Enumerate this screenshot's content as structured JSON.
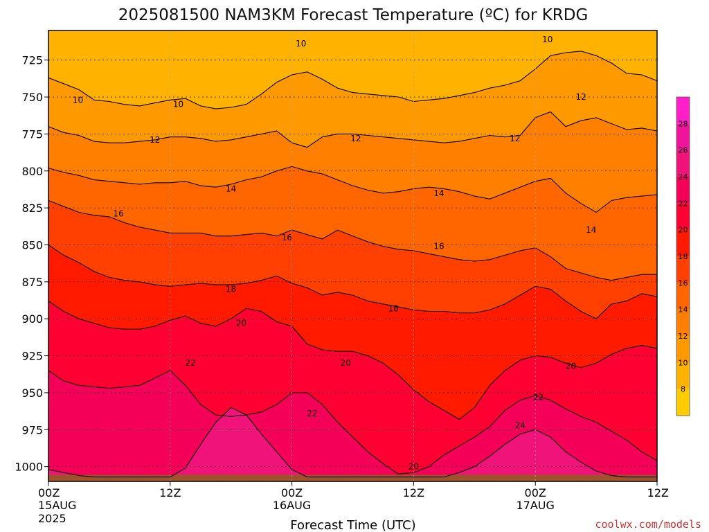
{
  "title": "2025081500 NAM3KM Forecast Temperature (ºC) for KRDG",
  "credit": "coolwx.com/models",
  "chart_data": {
    "type": "heatmap",
    "subtype": "time-height filled contour",
    "title": "2025081500 NAM3KM Forecast Temperature (ºC) for KRDG",
    "xlabel": "Forecast Time (UTC)",
    "ylabel": "",
    "x_ticks": [
      {
        "hour": 0,
        "label": "00Z",
        "date": "15AUG",
        "year": "2025"
      },
      {
        "hour": 12,
        "label": "12Z",
        "date": "",
        "year": ""
      },
      {
        "hour": 24,
        "label": "00Z",
        "date": "16AUG",
        "year": ""
      },
      {
        "hour": 36,
        "label": "12Z",
        "date": "",
        "year": ""
      },
      {
        "hour": 48,
        "label": "00Z",
        "date": "17AUG",
        "year": ""
      },
      {
        "hour": 60,
        "label": "12Z",
        "date": "",
        "year": ""
      }
    ],
    "xlim": [
      0,
      60
    ],
    "y_ticks": [
      725,
      750,
      775,
      800,
      825,
      850,
      875,
      900,
      925,
      950,
      975,
      1000
    ],
    "ylim": [
      1010,
      705
    ],
    "grid": true,
    "colorbar": {
      "ticks": [
        8,
        10,
        12,
        14,
        16,
        18,
        20,
        22,
        24,
        26,
        28
      ],
      "levels": [
        6,
        8,
        10,
        12,
        14,
        16,
        18,
        20,
        22,
        24,
        26,
        28,
        30
      ],
      "colors": [
        "#ffcc00",
        "#ffb300",
        "#ff9900",
        "#ff8000",
        "#ff6600",
        "#ff4000",
        "#ff1a00",
        "#ff0033",
        "#f50059",
        "#f0147a",
        "#f0149b",
        "#ff1ec8"
      ]
    },
    "ground_color": "#a0522d",
    "hours": [
      0,
      1.5,
      3,
      4.5,
      6,
      7.5,
      9,
      10.5,
      12,
      13.5,
      15,
      16.5,
      18,
      19.5,
      21,
      22.5,
      24,
      25.5,
      27,
      28.5,
      30,
      31.5,
      33,
      34.5,
      36,
      37.5,
      39,
      40.5,
      42,
      43.5,
      45,
      46.5,
      48,
      49.5,
      51,
      52.5,
      54,
      55.5,
      57,
      58.5,
      60
    ],
    "series": [
      {
        "name": "",
        "level": 10,
        "values": [
          737,
          741,
          745,
          752,
          753,
          755,
          756,
          754,
          752,
          751,
          756,
          758,
          757,
          755,
          748,
          740,
          735,
          733,
          738,
          744,
          747,
          748,
          749,
          750,
          753,
          752,
          751,
          749,
          747,
          744,
          742,
          739,
          731,
          722,
          720,
          719,
          722,
          727,
          734,
          735,
          739
        ]
      },
      {
        "name": "",
        "level": 12,
        "values": [
          770,
          774,
          776,
          780,
          781,
          781,
          780,
          779,
          777,
          777,
          778,
          780,
          779,
          777,
          775,
          773,
          781,
          784,
          777,
          775,
          775,
          776,
          777,
          778,
          779,
          780,
          781,
          780,
          778,
          776,
          777,
          776,
          764,
          760,
          770,
          766,
          764,
          768,
          772,
          771,
          773
        ]
      },
      {
        "name": "",
        "level": 14,
        "values": [
          798,
          801,
          803,
          806,
          807,
          808,
          809,
          808,
          808,
          807,
          810,
          811,
          809,
          806,
          804,
          800,
          797,
          800,
          802,
          806,
          810,
          813,
          815,
          814,
          812,
          811,
          812,
          814,
          817,
          819,
          815,
          811,
          807,
          805,
          815,
          822,
          828,
          820,
          818,
          817,
          816
        ]
      },
      {
        "name": "",
        "level": 16,
        "values": [
          820,
          824,
          828,
          830,
          831,
          835,
          838,
          840,
          842,
          842,
          842,
          844,
          844,
          843,
          842,
          844,
          840,
          843,
          846,
          840,
          844,
          848,
          851,
          853,
          854,
          856,
          858,
          860,
          861,
          860,
          857,
          854,
          852,
          858,
          866,
          869,
          872,
          874,
          872,
          870,
          870
        ]
      },
      {
        "name": "",
        "level": 18,
        "values": [
          850,
          857,
          862,
          868,
          872,
          874,
          875,
          877,
          878,
          877,
          876,
          877,
          877,
          876,
          874,
          871,
          876,
          879,
          884,
          882,
          884,
          888,
          890,
          892,
          894,
          895,
          895,
          896,
          896,
          894,
          890,
          884,
          878,
          880,
          888,
          895,
          900,
          890,
          888,
          883,
          885
        ]
      },
      {
        "name": "",
        "level": 20,
        "values": [
          888,
          895,
          900,
          903,
          906,
          907,
          907,
          905,
          901,
          898,
          903,
          905,
          900,
          893,
          895,
          902,
          905,
          917,
          921,
          922,
          922,
          925,
          930,
          938,
          948,
          956,
          962,
          968,
          960,
          945,
          935,
          928,
          925,
          926,
          930,
          933,
          930,
          924,
          920,
          918,
          920
        ]
      },
      {
        "name": "",
        "level": 22,
        "values": [
          935,
          942,
          945,
          946,
          947,
          946,
          945,
          940,
          935,
          945,
          958,
          965,
          966,
          965,
          963,
          958,
          950,
          950,
          958,
          970,
          980,
          990,
          998,
          1005,
          1004,
          1000,
          992,
          986,
          980,
          973,
          962,
          955,
          952,
          955,
          961,
          966,
          970,
          976,
          982,
          990,
          996
        ]
      },
      {
        "name": "",
        "level": 24,
        "values": [
          1002,
          1004,
          1006,
          1007,
          1007,
          1007,
          1007,
          1007,
          1007,
          1001,
          985,
          970,
          960,
          965,
          978,
          990,
          1002,
          1007,
          1007,
          1007,
          1007,
          1007,
          1007,
          1007,
          1007,
          1007,
          1007,
          1004,
          1000,
          993,
          985,
          978,
          975,
          980,
          990,
          997,
          1003,
          1006,
          1007,
          1007,
          1007
        ]
      }
    ],
    "contour_labels": [
      {
        "text": "10",
        "hour": 2.9,
        "p": 752
      },
      {
        "text": "10",
        "hour": 12.8,
        "p": 755
      },
      {
        "text": "10",
        "hour": 24.9,
        "p": 714
      },
      {
        "text": "10",
        "hour": 49.2,
        "p": 711
      },
      {
        "text": "12",
        "hour": 10.5,
        "p": 779
      },
      {
        "text": "12",
        "hour": 30.3,
        "p": 778
      },
      {
        "text": "12",
        "hour": 46.0,
        "p": 778
      },
      {
        "text": "12",
        "hour": 52.5,
        "p": 750
      },
      {
        "text": "14",
        "hour": 18.0,
        "p": 812
      },
      {
        "text": "14",
        "hour": 38.5,
        "p": 815
      },
      {
        "text": "14",
        "hour": 53.5,
        "p": 840
      },
      {
        "text": "16",
        "hour": 6.9,
        "p": 829
      },
      {
        "text": "16",
        "hour": 23.5,
        "p": 845
      },
      {
        "text": "16",
        "hour": 38.5,
        "p": 851
      },
      {
        "text": "18",
        "hour": 18.0,
        "p": 880
      },
      {
        "text": "18",
        "hour": 34.0,
        "p": 893
      },
      {
        "text": "20",
        "hour": 19.0,
        "p": 903
      },
      {
        "text": "20",
        "hour": 29.3,
        "p": 930
      },
      {
        "text": "20",
        "hour": 51.5,
        "p": 932
      },
      {
        "text": "20",
        "hour": 36.0,
        "p": 1000
      },
      {
        "text": "22",
        "hour": 14.0,
        "p": 930
      },
      {
        "text": "22",
        "hour": 26.0,
        "p": 964
      },
      {
        "text": "22",
        "hour": 48.3,
        "p": 953
      },
      {
        "text": "24",
        "hour": 46.5,
        "p": 972
      }
    ]
  }
}
